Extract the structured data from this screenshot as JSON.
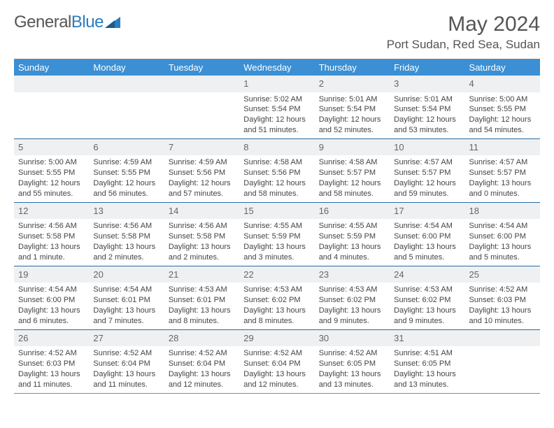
{
  "logo": {
    "part1": "General",
    "part2": "Blue"
  },
  "title": "May 2024",
  "location": "Port Sudan, Red Sea, Sudan",
  "colors": {
    "header_bg": "#3b8fd4",
    "header_text": "#ffffff",
    "daynum_bg": "#eef0f2",
    "daynum_text": "#666666",
    "body_text": "#444444",
    "row_border": "#2b6aa0",
    "title_text": "#555555",
    "logo_blue": "#2b7dbf"
  },
  "weekdays": [
    "Sunday",
    "Monday",
    "Tuesday",
    "Wednesday",
    "Thursday",
    "Friday",
    "Saturday"
  ],
  "weeks": [
    [
      null,
      null,
      null,
      {
        "n": "1",
        "sr": "Sunrise: 5:02 AM",
        "ss": "Sunset: 5:54 PM",
        "dl1": "Daylight: 12 hours",
        "dl2": "and 51 minutes."
      },
      {
        "n": "2",
        "sr": "Sunrise: 5:01 AM",
        "ss": "Sunset: 5:54 PM",
        "dl1": "Daylight: 12 hours",
        "dl2": "and 52 minutes."
      },
      {
        "n": "3",
        "sr": "Sunrise: 5:01 AM",
        "ss": "Sunset: 5:54 PM",
        "dl1": "Daylight: 12 hours",
        "dl2": "and 53 minutes."
      },
      {
        "n": "4",
        "sr": "Sunrise: 5:00 AM",
        "ss": "Sunset: 5:55 PM",
        "dl1": "Daylight: 12 hours",
        "dl2": "and 54 minutes."
      }
    ],
    [
      {
        "n": "5",
        "sr": "Sunrise: 5:00 AM",
        "ss": "Sunset: 5:55 PM",
        "dl1": "Daylight: 12 hours",
        "dl2": "and 55 minutes."
      },
      {
        "n": "6",
        "sr": "Sunrise: 4:59 AM",
        "ss": "Sunset: 5:55 PM",
        "dl1": "Daylight: 12 hours",
        "dl2": "and 56 minutes."
      },
      {
        "n": "7",
        "sr": "Sunrise: 4:59 AM",
        "ss": "Sunset: 5:56 PM",
        "dl1": "Daylight: 12 hours",
        "dl2": "and 57 minutes."
      },
      {
        "n": "8",
        "sr": "Sunrise: 4:58 AM",
        "ss": "Sunset: 5:56 PM",
        "dl1": "Daylight: 12 hours",
        "dl2": "and 58 minutes."
      },
      {
        "n": "9",
        "sr": "Sunrise: 4:58 AM",
        "ss": "Sunset: 5:57 PM",
        "dl1": "Daylight: 12 hours",
        "dl2": "and 58 minutes."
      },
      {
        "n": "10",
        "sr": "Sunrise: 4:57 AM",
        "ss": "Sunset: 5:57 PM",
        "dl1": "Daylight: 12 hours",
        "dl2": "and 59 minutes."
      },
      {
        "n": "11",
        "sr": "Sunrise: 4:57 AM",
        "ss": "Sunset: 5:57 PM",
        "dl1": "Daylight: 13 hours",
        "dl2": "and 0 minutes."
      }
    ],
    [
      {
        "n": "12",
        "sr": "Sunrise: 4:56 AM",
        "ss": "Sunset: 5:58 PM",
        "dl1": "Daylight: 13 hours",
        "dl2": "and 1 minute."
      },
      {
        "n": "13",
        "sr": "Sunrise: 4:56 AM",
        "ss": "Sunset: 5:58 PM",
        "dl1": "Daylight: 13 hours",
        "dl2": "and 2 minutes."
      },
      {
        "n": "14",
        "sr": "Sunrise: 4:56 AM",
        "ss": "Sunset: 5:58 PM",
        "dl1": "Daylight: 13 hours",
        "dl2": "and 2 minutes."
      },
      {
        "n": "15",
        "sr": "Sunrise: 4:55 AM",
        "ss": "Sunset: 5:59 PM",
        "dl1": "Daylight: 13 hours",
        "dl2": "and 3 minutes."
      },
      {
        "n": "16",
        "sr": "Sunrise: 4:55 AM",
        "ss": "Sunset: 5:59 PM",
        "dl1": "Daylight: 13 hours",
        "dl2": "and 4 minutes."
      },
      {
        "n": "17",
        "sr": "Sunrise: 4:54 AM",
        "ss": "Sunset: 6:00 PM",
        "dl1": "Daylight: 13 hours",
        "dl2": "and 5 minutes."
      },
      {
        "n": "18",
        "sr": "Sunrise: 4:54 AM",
        "ss": "Sunset: 6:00 PM",
        "dl1": "Daylight: 13 hours",
        "dl2": "and 5 minutes."
      }
    ],
    [
      {
        "n": "19",
        "sr": "Sunrise: 4:54 AM",
        "ss": "Sunset: 6:00 PM",
        "dl1": "Daylight: 13 hours",
        "dl2": "and 6 minutes."
      },
      {
        "n": "20",
        "sr": "Sunrise: 4:54 AM",
        "ss": "Sunset: 6:01 PM",
        "dl1": "Daylight: 13 hours",
        "dl2": "and 7 minutes."
      },
      {
        "n": "21",
        "sr": "Sunrise: 4:53 AM",
        "ss": "Sunset: 6:01 PM",
        "dl1": "Daylight: 13 hours",
        "dl2": "and 8 minutes."
      },
      {
        "n": "22",
        "sr": "Sunrise: 4:53 AM",
        "ss": "Sunset: 6:02 PM",
        "dl1": "Daylight: 13 hours",
        "dl2": "and 8 minutes."
      },
      {
        "n": "23",
        "sr": "Sunrise: 4:53 AM",
        "ss": "Sunset: 6:02 PM",
        "dl1": "Daylight: 13 hours",
        "dl2": "and 9 minutes."
      },
      {
        "n": "24",
        "sr": "Sunrise: 4:53 AM",
        "ss": "Sunset: 6:02 PM",
        "dl1": "Daylight: 13 hours",
        "dl2": "and 9 minutes."
      },
      {
        "n": "25",
        "sr": "Sunrise: 4:52 AM",
        "ss": "Sunset: 6:03 PM",
        "dl1": "Daylight: 13 hours",
        "dl2": "and 10 minutes."
      }
    ],
    [
      {
        "n": "26",
        "sr": "Sunrise: 4:52 AM",
        "ss": "Sunset: 6:03 PM",
        "dl1": "Daylight: 13 hours",
        "dl2": "and 11 minutes."
      },
      {
        "n": "27",
        "sr": "Sunrise: 4:52 AM",
        "ss": "Sunset: 6:04 PM",
        "dl1": "Daylight: 13 hours",
        "dl2": "and 11 minutes."
      },
      {
        "n": "28",
        "sr": "Sunrise: 4:52 AM",
        "ss": "Sunset: 6:04 PM",
        "dl1": "Daylight: 13 hours",
        "dl2": "and 12 minutes."
      },
      {
        "n": "29",
        "sr": "Sunrise: 4:52 AM",
        "ss": "Sunset: 6:04 PM",
        "dl1": "Daylight: 13 hours",
        "dl2": "and 12 minutes."
      },
      {
        "n": "30",
        "sr": "Sunrise: 4:52 AM",
        "ss": "Sunset: 6:05 PM",
        "dl1": "Daylight: 13 hours",
        "dl2": "and 13 minutes."
      },
      {
        "n": "31",
        "sr": "Sunrise: 4:51 AM",
        "ss": "Sunset: 6:05 PM",
        "dl1": "Daylight: 13 hours",
        "dl2": "and 13 minutes."
      },
      null
    ]
  ]
}
